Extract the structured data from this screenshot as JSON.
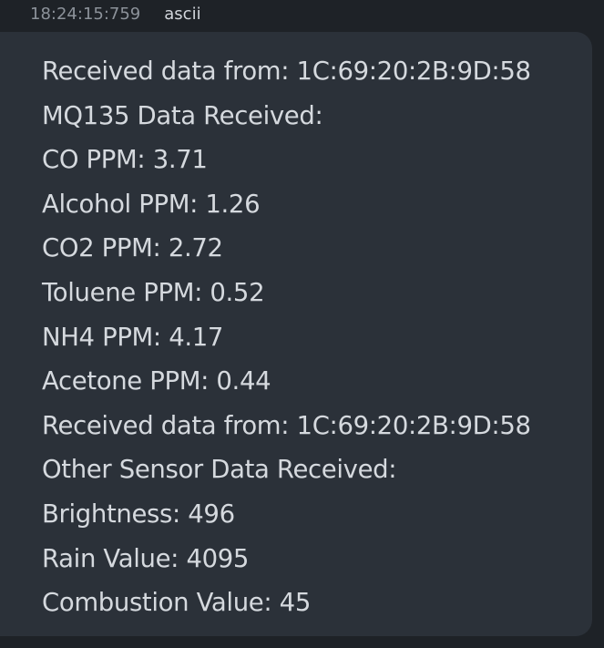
{
  "message": {
    "timestamp": "18:24:15:759",
    "format": "ascii",
    "lines": [
      "Received data from: 1C:69:20:2B:9D:58",
      "MQ135 Data Received:",
      "CO PPM: 3.71",
      "Alcohol PPM: 1.26",
      "CO2 PPM: 2.72",
      "Toluene PPM: 0.52",
      "NH4 PPM: 4.17",
      "Acetone PPM: 0.44",
      "Received data from: 1C:69:20:2B:9D:58",
      "Other Sensor Data Received:",
      "Brightness: 496",
      "Rain Value: 4095",
      "Combustion Value: 45"
    ]
  },
  "colors": {
    "background": "#1e2227",
    "bubble": "#2b3139",
    "text": "#d5d9de",
    "timestamp": "#8c929a"
  }
}
